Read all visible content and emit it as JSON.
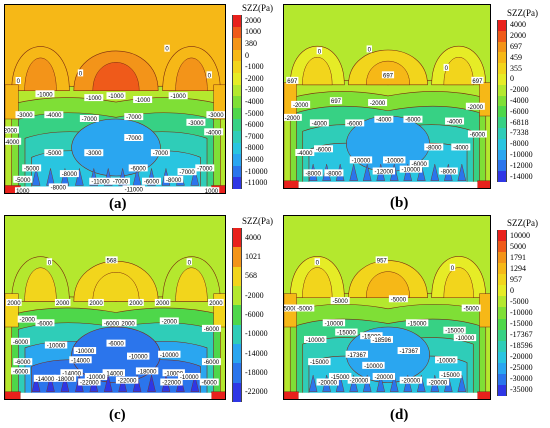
{
  "panels": [
    {
      "id": "a",
      "caption": "(a)",
      "legend": {
        "title": "SZZ(Pa)",
        "levels": [
          "2000",
          "1000",
          "380",
          "0",
          "-1000",
          "-2000",
          "-3000",
          "-4000",
          "-5000",
          "-6000",
          "-7000",
          "-8000",
          "-9000",
          "-10000",
          "-11000"
        ],
        "colors": [
          "#e8211c",
          "#ef5a1a",
          "#f39419",
          "#f6b817",
          "#f2d51c",
          "#e6ec26",
          "#b4e82e",
          "#7fdf36",
          "#4ed74a",
          "#37d184",
          "#2fcdb8",
          "#29c5e0",
          "#2aa6f0",
          "#2b75ec",
          "#2f37e5"
        ]
      },
      "contour_labels": [
        "0",
        "0",
        "0",
        "0",
        "-1000",
        "-1000",
        "-1000",
        "-1000",
        "-1000",
        "-3000",
        "-4000",
        "-3000",
        "-7000",
        "-7000",
        "-3000",
        "-4000",
        "-2000",
        "-4000",
        "-7000",
        "-7000",
        "-5000",
        "-3000",
        "-5000",
        "-6000",
        "-8000",
        "-7000",
        "-7000",
        "-7000",
        "-6000",
        "-8000",
        "-11000",
        "-11000",
        "-8000",
        "-5000",
        "1000",
        "1000"
      ]
    },
    {
      "id": "b",
      "caption": "(b)",
      "legend": {
        "title": "SZZ(Pa)",
        "levels": [
          "4000",
          "2000",
          "697",
          "459",
          "355",
          "0",
          "-2000",
          "-4000",
          "-6000",
          "-6818",
          "-7338",
          "-8000",
          "-10000",
          "-12000",
          "-14000"
        ],
        "colors": [
          "#e8211c",
          "#ef5a1a",
          "#f39419",
          "#f6b817",
          "#f2d51c",
          "#e6ec26",
          "#b4e82e",
          "#7fdf36",
          "#4ed74a",
          "#37d184",
          "#2fcdb8",
          "#29c5e0",
          "#2aa6f0",
          "#2b75ec",
          "#2f37e5"
        ]
      },
      "contour_labels": [
        "0",
        "0",
        "0",
        "697",
        "697",
        "697",
        "697",
        "-2000",
        "-2000",
        "-2000",
        "-2000",
        "-4000",
        "-6000",
        "-4000",
        "-6000",
        "-4000",
        "-6000",
        "-4000",
        "-10000",
        "-10000",
        "-4000",
        "-6000",
        "-8000",
        "-8000",
        "-8000",
        "-12000",
        "-6000",
        "-10000",
        "-8000"
      ]
    },
    {
      "id": "c",
      "caption": "(c)",
      "legend": {
        "title": "SZZ(Pa)",
        "levels": [
          "4000",
          "1021",
          "568",
          "-2000",
          "-6000",
          "-10000",
          "-14000",
          "-18000",
          "-22000"
        ],
        "colors": [
          "#e8211c",
          "#f39419",
          "#f2d51c",
          "#b4e82e",
          "#4ed74a",
          "#2fcdb8",
          "#2aa6f0",
          "#2b75ec",
          "#2f37e5"
        ]
      },
      "contour_labels": [
        "0",
        "568",
        "0",
        "2000",
        "2000",
        "2000",
        "2000",
        "2000",
        "2000",
        "-2000",
        "-6000",
        "-2000",
        "-6000",
        "-2000",
        "-6000",
        "-6000",
        "-10000",
        "-6000",
        "-10000",
        "-10000",
        "-14000",
        "-10000",
        "-14000",
        "-6000",
        "-6000",
        "-18000",
        "-14000",
        "-10000",
        "-6000",
        "-22000",
        "-22000",
        "-18000",
        "-14000",
        "-22000",
        "-10000",
        "-10000",
        "-6000"
      ]
    },
    {
      "id": "d",
      "caption": "(d)",
      "legend": {
        "title": "SZZ(Pa)",
        "levels": [
          "10000",
          "5000",
          "1791",
          "1294",
          "957",
          "0",
          "-5000",
          "-10000",
          "-15000",
          "-17367",
          "-18596",
          "-20000",
          "-25000",
          "-30000",
          "-35000"
        ],
        "colors": [
          "#e8211c",
          "#ef5a1a",
          "#f39419",
          "#f6b817",
          "#f2d51c",
          "#e6ec26",
          "#b4e82e",
          "#7fdf36",
          "#4ed74a",
          "#37d184",
          "#2fcdb8",
          "#29c5e0",
          "#2aa6f0",
          "#2b75ec",
          "#2f37e5"
        ]
      },
      "contour_labels": [
        "0",
        "957",
        "0",
        "5000",
        "-5000",
        "-5000",
        "-5000",
        "-5000",
        "-10000",
        "-15000",
        "-10000",
        "-15000",
        "-18596",
        "-15000",
        "-15000",
        "-10000",
        "-10000",
        "-15000",
        "-17367",
        "-17367",
        "-10000",
        "-20000",
        "-15000",
        "-20000",
        "-20000",
        "-15000",
        "-20000",
        "-20000"
      ]
    }
  ]
}
